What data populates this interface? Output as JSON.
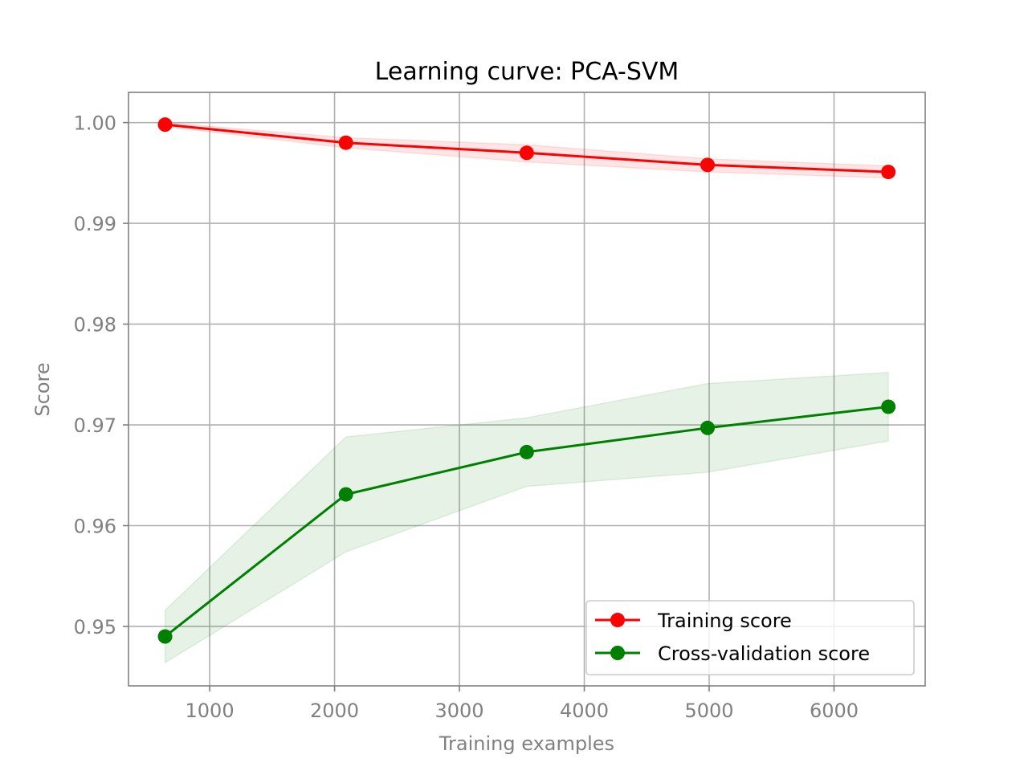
{
  "chart_data": {
    "type": "line",
    "title": "Learning curve: PCA-SVM",
    "xlabel": "Training examples",
    "ylabel": "Score",
    "xlim": [
      350,
      6730
    ],
    "ylim": [
      0.9441,
      1.003
    ],
    "xticks": [
      1000,
      2000,
      3000,
      4000,
      5000,
      6000
    ],
    "xtick_labels": [
      "1000",
      "2000",
      "3000",
      "4000",
      "5000",
      "6000"
    ],
    "yticks": [
      0.95,
      0.96,
      0.97,
      0.98,
      0.99,
      1.0
    ],
    "ytick_labels": [
      "0.95",
      "0.96",
      "0.97",
      "0.98",
      "0.99",
      "1.00"
    ],
    "grid": true,
    "legend_position": "lower-right",
    "x": [
      643,
      2091,
      3539,
      4987,
      6435
    ],
    "series": [
      {
        "name": "Training score",
        "color": "#ff0000",
        "values": [
          0.9998,
          0.998,
          0.997,
          0.9958,
          0.9951
        ],
        "band_lower": [
          0.9996,
          0.9975,
          0.9961,
          0.9951,
          0.9945
        ],
        "band_upper": [
          1.0,
          0.9985,
          0.9978,
          0.9964,
          0.9957
        ]
      },
      {
        "name": "Cross-validation score",
        "color": "#008000",
        "values": [
          0.949,
          0.9631,
          0.9673,
          0.9697,
          0.9718
        ],
        "band_lower": [
          0.9464,
          0.9574,
          0.9639,
          0.9653,
          0.9684
        ],
        "band_upper": [
          0.9516,
          0.9688,
          0.9707,
          0.9741,
          0.9752
        ]
      }
    ]
  }
}
